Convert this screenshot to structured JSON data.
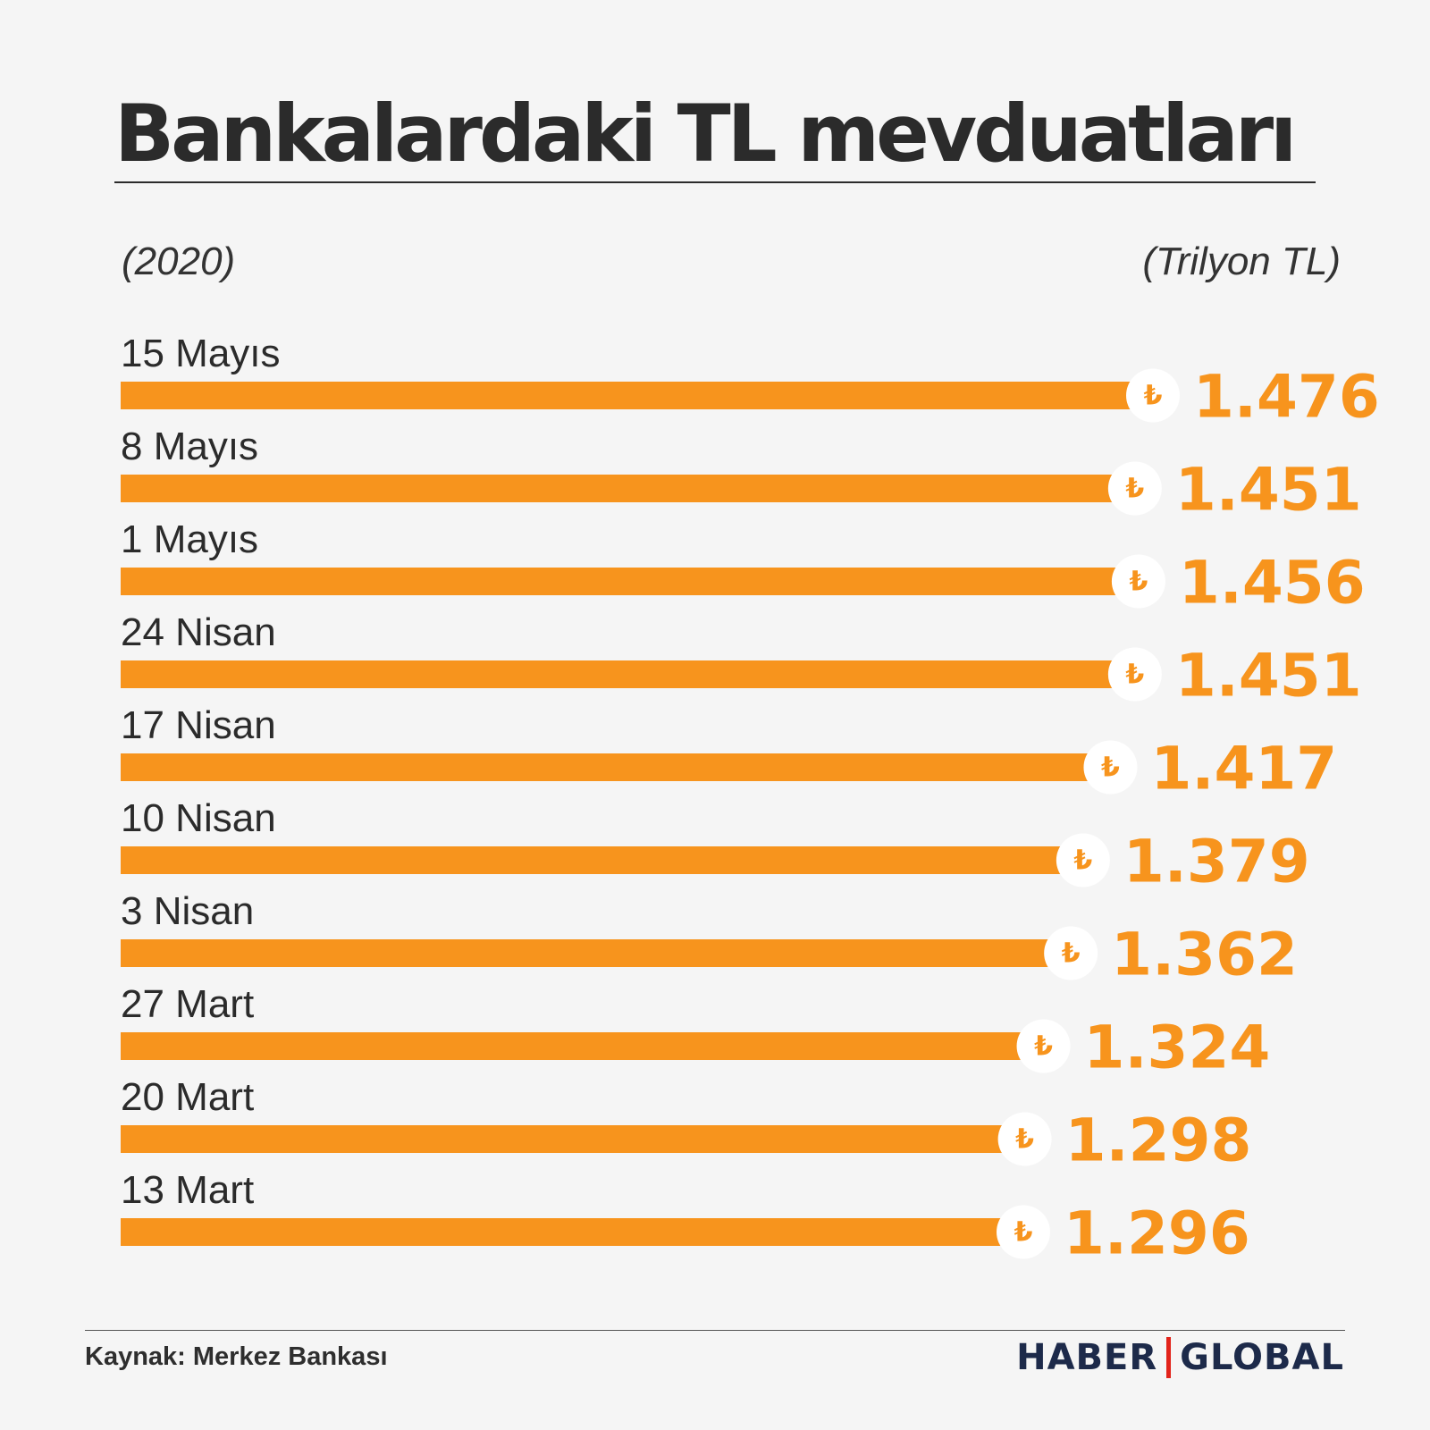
{
  "header": {
    "title": "Bankalardaki TL mevduatları",
    "period_label": "(2020)",
    "unit_label": "(Trilyon TL)"
  },
  "footer": {
    "source": "Kaynak: Merkez Bankası",
    "logo_left": "HABER",
    "logo_right": "GLOBAL"
  },
  "colors": {
    "bar": "#f7941d",
    "value_text": "#f7941d",
    "label_text": "#2b2b2b",
    "badge_bg": "#ffffff",
    "background": "#f5f5f5"
  },
  "icons": {
    "currency_badge": "turkish-lira-icon",
    "currency_symbol": "₺"
  },
  "chart_data": {
    "type": "bar",
    "orientation": "horizontal",
    "categories": [
      "15 Mayıs",
      "8 Mayıs",
      "1 Mayıs",
      "24 Nisan",
      "17 Nisan",
      "10 Nisan",
      "3 Nisan",
      "27 Mart",
      "20 Mart",
      "13 Mart"
    ],
    "values": [
      1.476,
      1.451,
      1.456,
      1.451,
      1.417,
      1.379,
      1.362,
      1.324,
      1.298,
      1.296
    ],
    "value_labels": [
      "1.476",
      "1.451",
      "1.456",
      "1.451",
      "1.417",
      "1.379",
      "1.362",
      "1.324",
      "1.298",
      "1.296"
    ],
    "title": "Bankalardaki TL mevduatları",
    "xlabel": "",
    "ylabel": "",
    "grid": false,
    "legend": "none"
  }
}
